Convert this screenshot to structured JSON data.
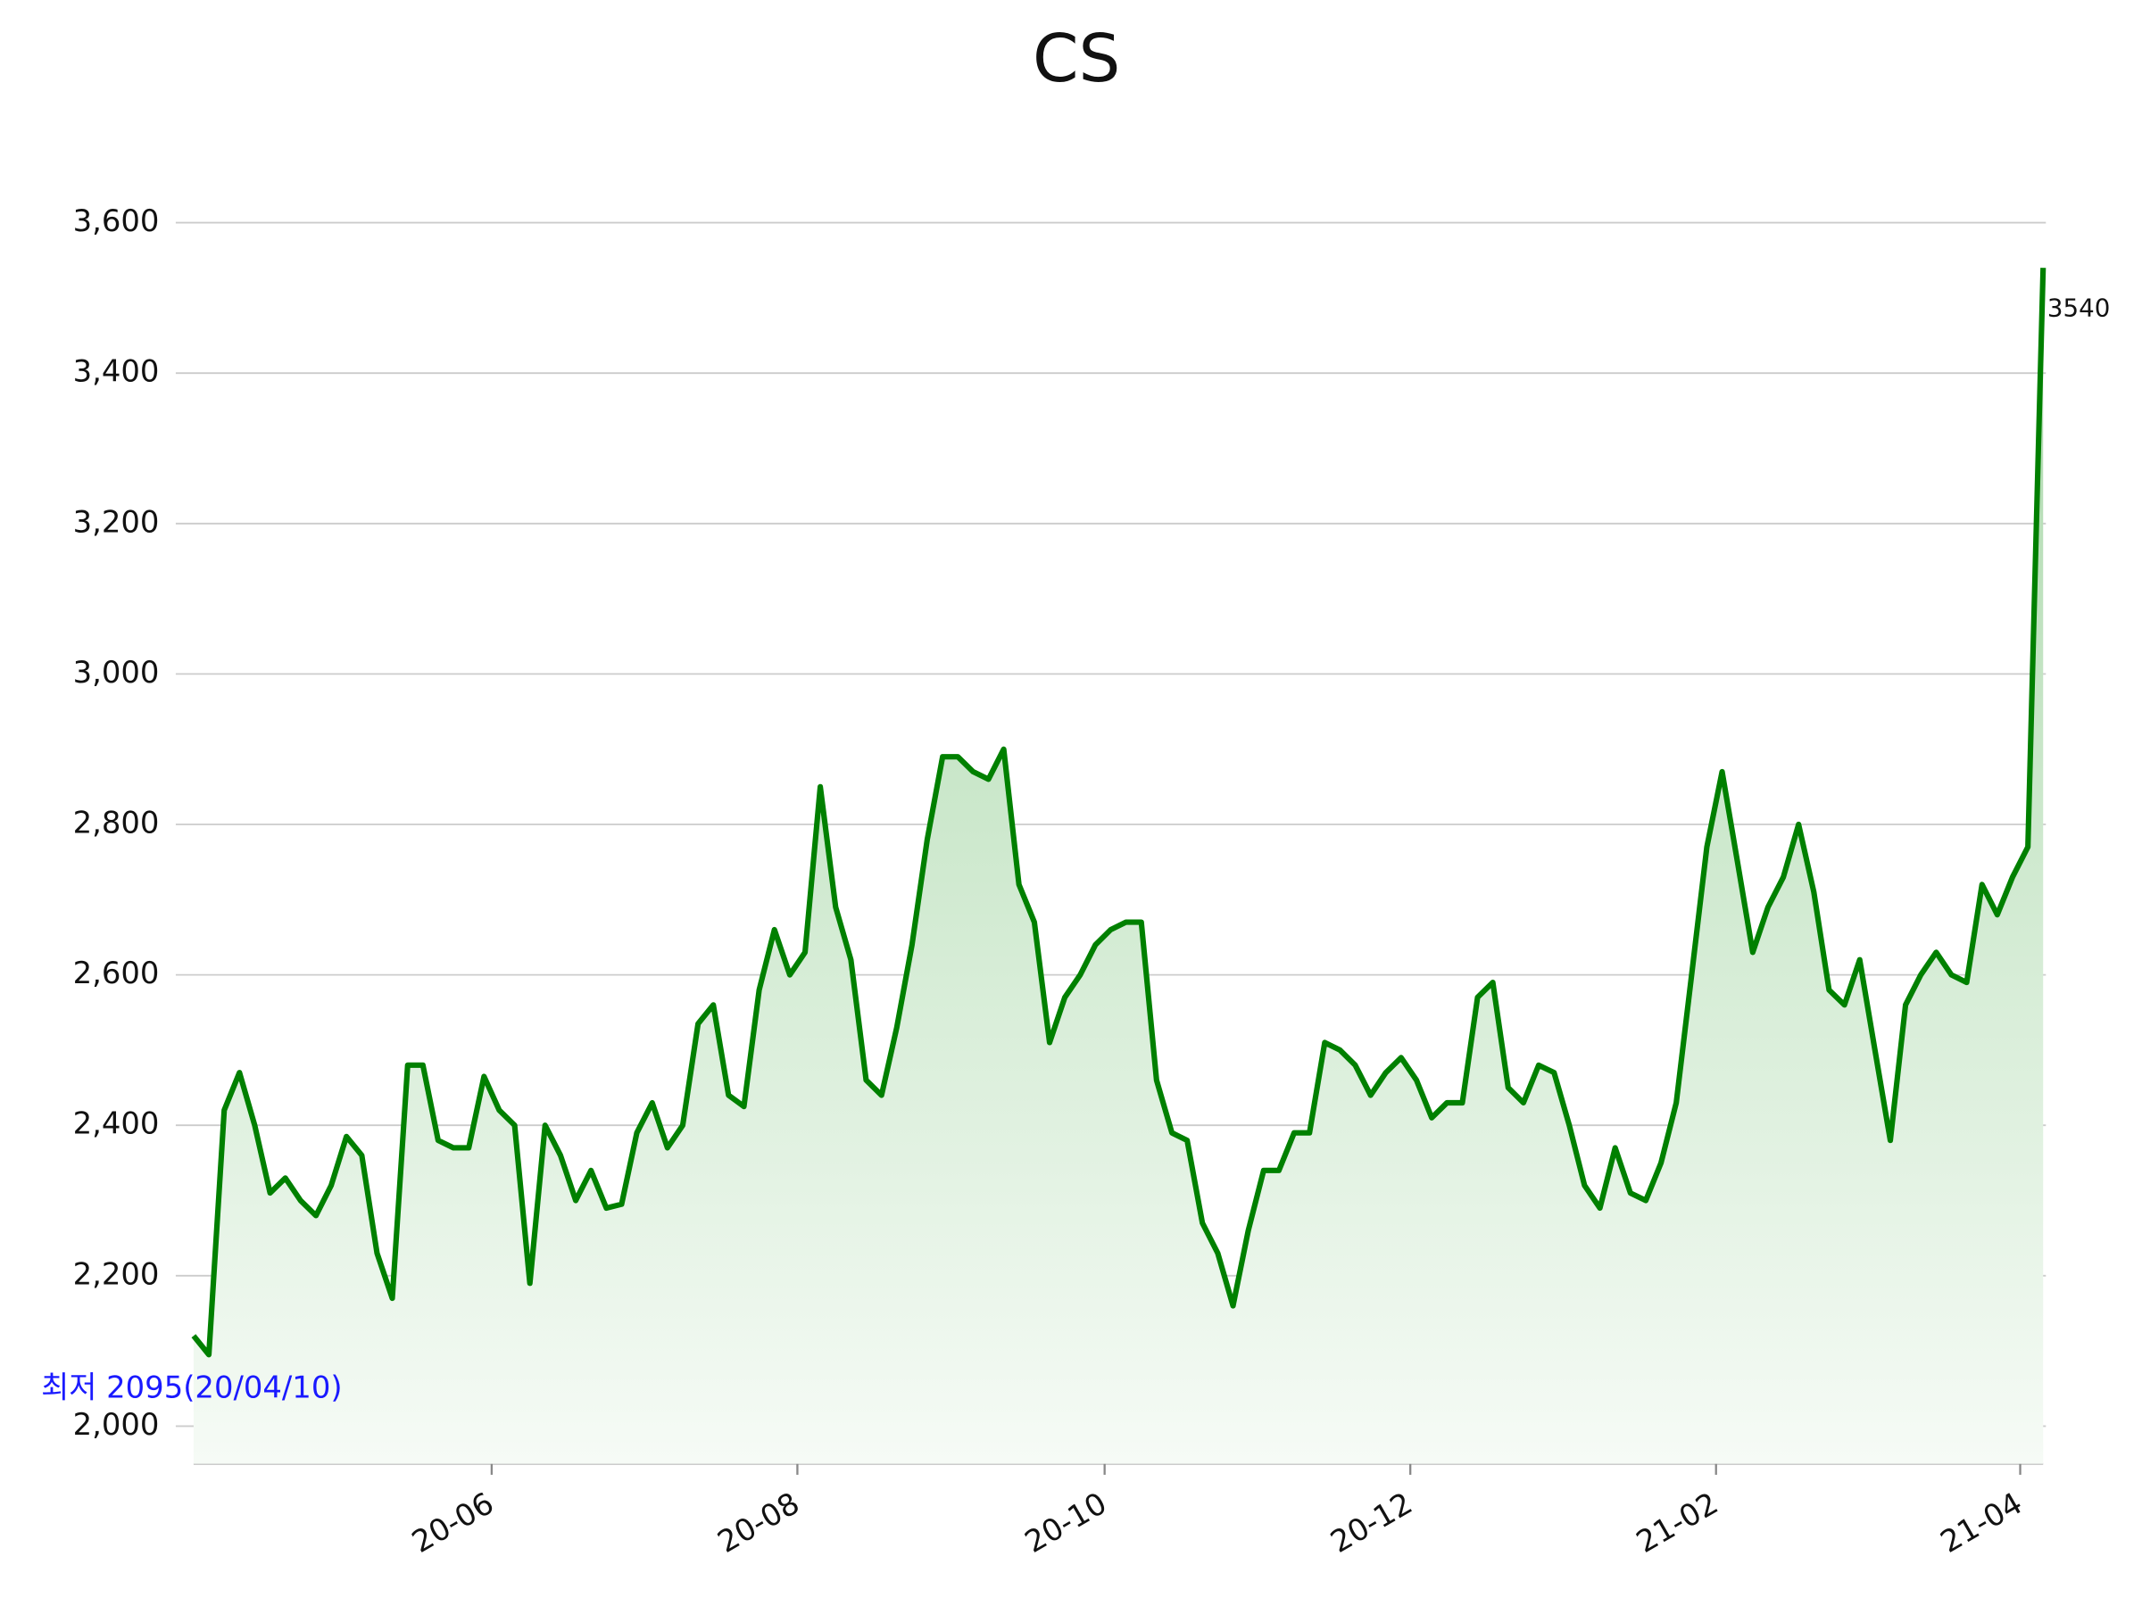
{
  "chart_data": {
    "type": "line",
    "title": "CS",
    "values": [
      2120,
      2095,
      2420,
      2470,
      2400,
      2310,
      2330,
      2300,
      2280,
      2320,
      2385,
      2360,
      2230,
      2170,
      2480,
      2480,
      2380,
      2370,
      2370,
      2465,
      2420,
      2400,
      2190,
      2400,
      2360,
      2300,
      2340,
      2290,
      2295,
      2390,
      2430,
      2370,
      2400,
      2535,
      2560,
      2440,
      2425,
      2580,
      2660,
      2600,
      2630,
      2850,
      2690,
      2620,
      2460,
      2440,
      2530,
      2640,
      2780,
      2890,
      2890,
      2870,
      2860,
      2900,
      2720,
      2670,
      2510,
      2570,
      2600,
      2640,
      2660,
      2670,
      2670,
      2460,
      2390,
      2380,
      2270,
      2230,
      2160,
      2260,
      2340,
      2340,
      2390,
      2390,
      2510,
      2500,
      2480,
      2440,
      2470,
      2490,
      2460,
      2410,
      2430,
      2430,
      2570,
      2590,
      2450,
      2430,
      2480,
      2470,
      2400,
      2320,
      2290,
      2370,
      2310,
      2300,
      2350,
      2430,
      2600,
      2770,
      2870,
      2750,
      2630,
      2690,
      2730,
      2800,
      2710,
      2580,
      2560,
      2620,
      2500,
      2380,
      2560,
      2600,
      2630,
      2600,
      2590,
      2720,
      2680,
      2730,
      2770,
      3540
    ],
    "color": "#008000",
    "xlim": [
      0,
      121
    ],
    "xticks": [
      {
        "value": 19.5,
        "label": "20-06"
      },
      {
        "value": 39.5,
        "label": "20-08"
      },
      {
        "value": 59.6,
        "label": "20-10"
      },
      {
        "value": 79.6,
        "label": "20-12"
      },
      {
        "value": 99.6,
        "label": "21-02"
      },
      {
        "value": 119.5,
        "label": "21-04"
      }
    ],
    "ylim": [
      1950,
      3650
    ],
    "yticks": [
      {
        "value": 2000,
        "label": "2,000"
      },
      {
        "value": 2200,
        "label": "2,200"
      },
      {
        "value": 2400,
        "label": "2,400"
      },
      {
        "value": 2600,
        "label": "2,600"
      },
      {
        "value": 2800,
        "label": "2,800"
      },
      {
        "value": 3000,
        "label": "3,000"
      },
      {
        "value": 3200,
        "label": "3,200"
      },
      {
        "value": 3400,
        "label": "3,400"
      },
      {
        "value": 3600,
        "label": "3,600"
      }
    ],
    "grid": true,
    "annotation": "최저 2095(20/04/10)"
  }
}
